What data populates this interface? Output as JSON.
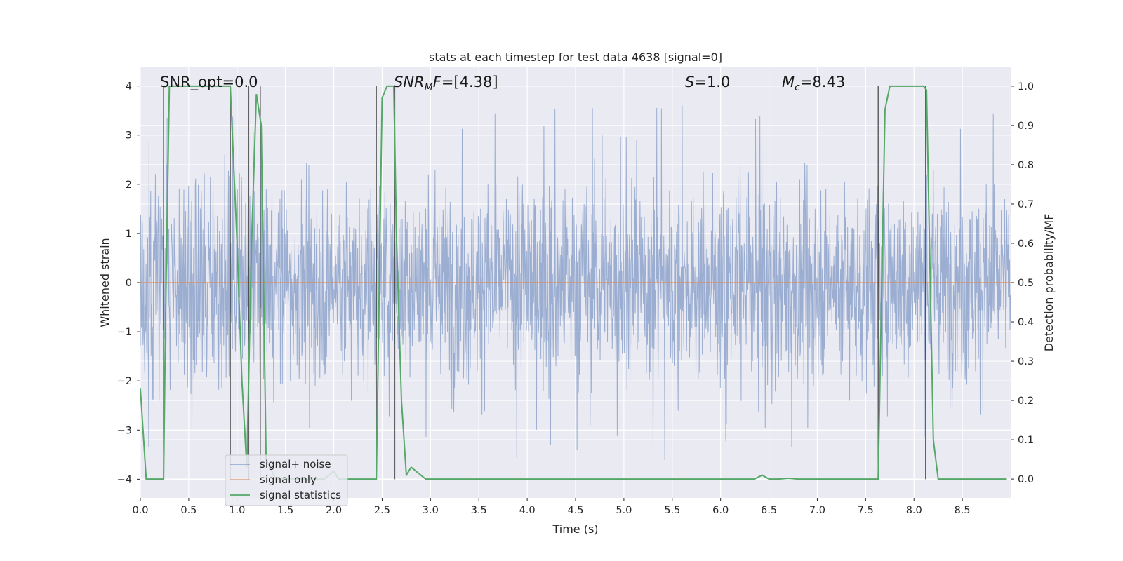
{
  "chart_data": {
    "type": "line",
    "title": "stats at each timestep for test data 4638 [signal=0]",
    "xlabel": "Time (s)",
    "ylabel": "Whitened strain",
    "y2label": "Detection probability/MF",
    "xlim": [
      0.0,
      9.0
    ],
    "ylim": [
      -4.38,
      4.38
    ],
    "y2lim": [
      -0.048,
      1.048
    ],
    "xticks": [
      "0.0",
      "0.5",
      "1.0",
      "1.5",
      "2.0",
      "2.5",
      "3.0",
      "3.5",
      "4.0",
      "4.5",
      "5.0",
      "5.5",
      "6.0",
      "6.5",
      "7.0",
      "7.5",
      "8.0",
      "8.5"
    ],
    "xtick_values": [
      0.0,
      0.5,
      1.0,
      1.5,
      2.0,
      2.5,
      3.0,
      3.5,
      4.0,
      4.5,
      5.0,
      5.5,
      6.0,
      6.5,
      7.0,
      7.5,
      8.0,
      8.5
    ],
    "yticks": [
      "−4",
      "−3",
      "−2",
      "−1",
      "0",
      "1",
      "2",
      "3",
      "4"
    ],
    "ytick_values": [
      -4,
      -3,
      -2,
      -1,
      0,
      1,
      2,
      3,
      4
    ],
    "y2ticks": [
      "0.0",
      "0.1",
      "0.2",
      "0.3",
      "0.4",
      "0.5",
      "0.6",
      "0.7",
      "0.8",
      "0.9",
      "1.0"
    ],
    "y2tick_values": [
      0.0,
      0.1,
      0.2,
      0.3,
      0.4,
      0.5,
      0.6,
      0.7,
      0.8,
      0.9,
      1.0
    ],
    "grid": true,
    "legend_position": "lower-left",
    "series": [
      {
        "name": "signal+ noise",
        "color": "#4c72b0",
        "kind": "noise-band",
        "approx_envelope": {
          "typical_low": -1.6,
          "typical_high": 1.6,
          "peak_low": -3.8,
          "peak_high": 3.6
        }
      },
      {
        "name": "signal only",
        "color": "#dd8452",
        "x": [
          0.0,
          9.0
        ],
        "y": [
          0.0,
          0.0
        ]
      },
      {
        "name": "signal statistics",
        "color": "#55a868",
        "axis": "right",
        "x": [
          0.0,
          0.06,
          0.1,
          0.2,
          0.24,
          0.26,
          0.3,
          0.4,
          0.5,
          0.6,
          0.7,
          0.8,
          0.93,
          1.0,
          1.05,
          1.1,
          1.15,
          1.2,
          1.25,
          1.3,
          1.4,
          1.5,
          1.6,
          1.7,
          1.8,
          1.9,
          2.0,
          2.05,
          2.1,
          2.2,
          2.3,
          2.44,
          2.5,
          2.55,
          2.62,
          2.65,
          2.7,
          2.75,
          2.8,
          2.9,
          2.95,
          3.5,
          4.0,
          5.0,
          6.0,
          6.35,
          6.43,
          6.5,
          6.6,
          6.7,
          6.8,
          7.0,
          7.5,
          7.63,
          7.7,
          7.75,
          7.8,
          8.0,
          8.1,
          8.13,
          8.2,
          8.25,
          8.3,
          8.4,
          8.5,
          8.96
        ],
        "y": [
          0.23,
          0.0,
          0.0,
          0.0,
          0.0,
          0.4,
          1.0,
          1.0,
          1.0,
          1.0,
          1.0,
          1.0,
          1.0,
          0.6,
          0.25,
          0.03,
          0.6,
          0.98,
          0.9,
          0.05,
          0.0,
          0.0,
          0.0,
          0.0,
          0.0,
          0.0,
          0.02,
          0.0,
          0.0,
          0.0,
          0.0,
          0.0,
          0.97,
          1.0,
          1.0,
          0.6,
          0.2,
          0.01,
          0.03,
          0.01,
          0.0,
          0.0,
          0.0,
          0.0,
          0.0,
          0.0,
          0.01,
          0.0,
          0.0,
          0.002,
          0.0,
          0.0,
          0.0,
          0.0,
          0.94,
          1.0,
          1.0,
          1.0,
          1.0,
          0.99,
          0.1,
          0.0,
          0.0,
          0.0,
          0.0,
          0.0
        ]
      }
    ],
    "vertical_lines": [
      0.24,
      0.93,
      1.12,
      1.24,
      2.44,
      2.63,
      7.63,
      8.12
    ],
    "vertical_line_color": "#333333",
    "annotations": {
      "snr_opt": "SNR_opt=0.0",
      "snr_mf_base": "SNR",
      "snr_mf_sub": "M",
      "snr_mf_tail": "F=[4.38]",
      "s_italic": "S",
      "s_value": "=1.0",
      "mc_base": "M",
      "mc_sub": "c",
      "mc_value": "=8.43"
    }
  }
}
